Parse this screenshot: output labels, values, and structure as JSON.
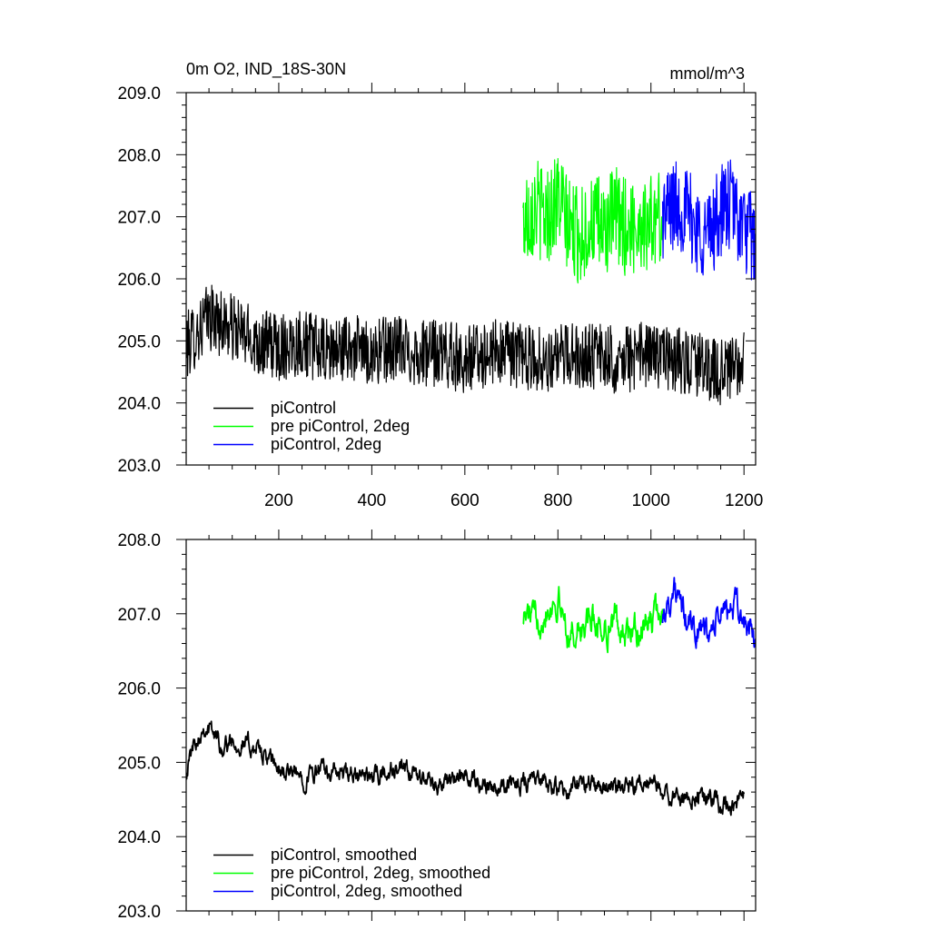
{
  "chart_data": [
    {
      "type": "line",
      "title": "0m O2, IND_18S-30N",
      "units": "mmol/m^3",
      "xlim": [
        1,
        1225
      ],
      "ylim": [
        203.0,
        209.0
      ],
      "x_ticks": [
        200,
        400,
        600,
        800,
        1000,
        1200
      ],
      "x_tick_labels": [
        "200",
        "400",
        "600",
        "800",
        "1000",
        "1200"
      ],
      "y_ticks": [
        203,
        204,
        205,
        206,
        207,
        208,
        209
      ],
      "y_tick_labels": [
        "203.0",
        "204.0",
        "205.0",
        "206.0",
        "207.0",
        "208.0",
        "209.0"
      ],
      "legend_position": "bottom-left",
      "series": [
        {
          "name": "piControl",
          "color": "#000000",
          "x_range": [
            1,
            1200
          ],
          "x": [
            1,
            50,
            100,
            150,
            200,
            250,
            300,
            350,
            400,
            450,
            500,
            550,
            600,
            650,
            700,
            750,
            800,
            850,
            900,
            950,
            1000,
            1050,
            1100,
            1150,
            1200
          ],
          "values": [
            204.9,
            205.4,
            205.2,
            205.0,
            204.9,
            205.0,
            204.8,
            204.9,
            204.8,
            204.9,
            204.8,
            204.8,
            204.7,
            204.8,
            204.8,
            204.7,
            204.7,
            204.8,
            204.7,
            204.7,
            204.8,
            204.7,
            204.6,
            204.5,
            204.6
          ],
          "high_freq_amplitude": 0.55
        },
        {
          "name": "pre piControl, 2deg",
          "color": "#00ff00",
          "x_range": [
            725,
            1025
          ],
          "x": [
            725,
            750,
            775,
            800,
            825,
            850,
            875,
            900,
            925,
            950,
            975,
            1000,
            1025
          ],
          "values": [
            206.9,
            207.2,
            207.0,
            207.3,
            206.8,
            206.7,
            206.9,
            206.8,
            207.0,
            206.8,
            206.9,
            206.9,
            207.0
          ],
          "high_freq_amplitude": 0.8
        },
        {
          "name": "piControl, 2deg",
          "color": "#0000ff",
          "x_range": [
            1025,
            1225
          ],
          "x": [
            1025,
            1050,
            1075,
            1100,
            1125,
            1150,
            1175,
            1200,
            1225
          ],
          "values": [
            207.0,
            207.2,
            207.1,
            206.8,
            206.7,
            207.1,
            207.2,
            206.8,
            206.6
          ],
          "high_freq_amplitude": 0.75
        }
      ]
    },
    {
      "type": "line",
      "title": "",
      "xlim": [
        1,
        1225
      ],
      "ylim": [
        203.0,
        208.0
      ],
      "x_ticks": [
        200,
        400,
        600,
        800,
        1000,
        1200
      ],
      "y_ticks": [
        203,
        204,
        205,
        206,
        207,
        208
      ],
      "y_tick_labels": [
        "203.0",
        "204.0",
        "205.0",
        "206.0",
        "207.0",
        "208.0"
      ],
      "legend_position": "bottom-left",
      "series": [
        {
          "name": "piControl, smoothed",
          "color": "#000000",
          "x_range": [
            1,
            1200
          ],
          "x": [
            1,
            20,
            40,
            60,
            80,
            100,
            150,
            200,
            250,
            300,
            350,
            400,
            450,
            500,
            550,
            600,
            650,
            700,
            750,
            800,
            850,
            900,
            950,
            1000,
            1050,
            1100,
            1150,
            1200
          ],
          "values": [
            204.9,
            205.3,
            205.5,
            205.4,
            205.2,
            205.3,
            205.2,
            204.9,
            204.8,
            204.9,
            204.8,
            204.8,
            204.9,
            204.8,
            204.7,
            204.8,
            204.7,
            204.7,
            204.8,
            204.6,
            204.7,
            204.7,
            204.6,
            204.7,
            204.5,
            204.6,
            204.4,
            204.5
          ],
          "high_freq_amplitude": 0.18
        },
        {
          "name": "pre piControl, 2deg, smoothed",
          "color": "#00ff00",
          "x_range": [
            725,
            1025
          ],
          "x": [
            725,
            750,
            775,
            800,
            825,
            850,
            875,
            900,
            925,
            950,
            975,
            1000,
            1025
          ],
          "values": [
            207.0,
            206.9,
            207.1,
            207.2,
            206.7,
            206.8,
            206.9,
            206.8,
            206.9,
            206.7,
            206.8,
            206.9,
            207.0
          ],
          "high_freq_amplitude": 0.3
        },
        {
          "name": "piControl, 2deg, smoothed",
          "color": "#0000ff",
          "x_range": [
            1025,
            1225
          ],
          "x": [
            1025,
            1050,
            1075,
            1100,
            1125,
            1150,
            1175,
            1200,
            1225
          ],
          "values": [
            207.0,
            207.3,
            206.9,
            206.8,
            206.7,
            207.0,
            207.1,
            206.9,
            206.6
          ],
          "high_freq_amplitude": 0.28
        }
      ]
    }
  ]
}
